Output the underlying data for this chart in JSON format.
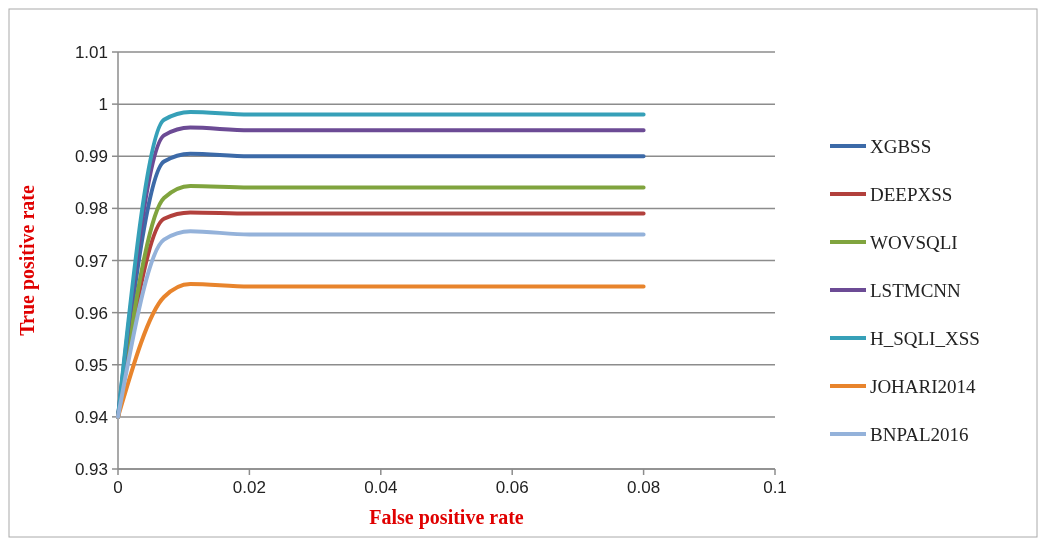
{
  "chart_data": {
    "type": "line",
    "xlabel": "False positive rate",
    "ylabel": "True positive rate",
    "x": [
      0,
      0.007,
      0.011,
      0.02,
      0.08
    ],
    "xlim": [
      0,
      0.1
    ],
    "xticks": [
      0,
      0.02,
      0.04,
      0.06,
      0.08,
      0.1
    ],
    "ylim": [
      0.93,
      1.01
    ],
    "yticks": [
      0.93,
      0.94,
      0.95,
      0.96,
      0.97,
      0.98,
      0.99,
      1,
      1.01
    ],
    "grid": "y",
    "legend": "right",
    "marker": "none",
    "line_style": "solid",
    "series": [
      {
        "name": "XGBSS",
        "color": "#3c6aa8",
        "values": [
          0.94,
          0.989,
          0.9905,
          0.99,
          0.99
        ]
      },
      {
        "name": "DEEPXSS",
        "color": "#b2403c",
        "values": [
          0.94,
          0.978,
          0.9792,
          0.979,
          0.979
        ]
      },
      {
        "name": "WOVSQLI",
        "color": "#80a43e",
        "values": [
          0.94,
          0.982,
          0.9843,
          0.984,
          0.984
        ]
      },
      {
        "name": "LSTMCNN",
        "color": "#6c4b95",
        "values": [
          0.94,
          0.994,
          0.9955,
          0.995,
          0.995
        ]
      },
      {
        "name": "H_SQLI_XSS",
        "color": "#36a0b8",
        "values": [
          0.94,
          0.997,
          0.9985,
          0.998,
          0.998
        ]
      },
      {
        "name": "JOHARI2014",
        "color": "#e8842c",
        "values": [
          0.94,
          0.963,
          0.9655,
          0.965,
          0.965
        ]
      },
      {
        "name": "BNPAL2016",
        "color": "#94b2da",
        "values": [
          0.94,
          0.974,
          0.9756,
          0.975,
          0.975
        ]
      }
    ]
  }
}
